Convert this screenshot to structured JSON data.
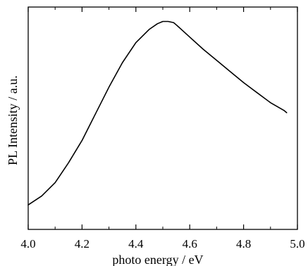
{
  "chart_data": {
    "type": "line",
    "xlabel": "photo energy / eV",
    "ylabel": "PL Intensity / a.u.",
    "xlim": [
      4.0,
      5.0
    ],
    "ylim": [
      0,
      1
    ],
    "xticks": [
      4.0,
      4.2,
      4.4,
      4.6,
      4.8,
      5.0
    ],
    "xtick_labels": [
      "4.0",
      "4.2",
      "4.4",
      "4.6",
      "4.8",
      "5.0"
    ],
    "yticks_labeled": false,
    "grid": false,
    "line_color": "#000000",
    "series": [
      {
        "x": [
          4.0,
          4.05,
          4.1,
          4.15,
          4.2,
          4.25,
          4.3,
          4.35,
          4.4,
          4.45,
          4.48,
          4.5,
          4.52,
          4.54,
          4.55,
          4.6,
          4.65,
          4.7,
          4.75,
          4.8,
          4.85,
          4.9,
          4.95,
          4.96
        ],
        "y": [
          0.11,
          0.15,
          0.21,
          0.3,
          0.4,
          0.52,
          0.64,
          0.75,
          0.84,
          0.9,
          0.925,
          0.935,
          0.935,
          0.93,
          0.92,
          0.865,
          0.81,
          0.76,
          0.71,
          0.66,
          0.615,
          0.57,
          0.535,
          0.525
        ]
      }
    ]
  }
}
